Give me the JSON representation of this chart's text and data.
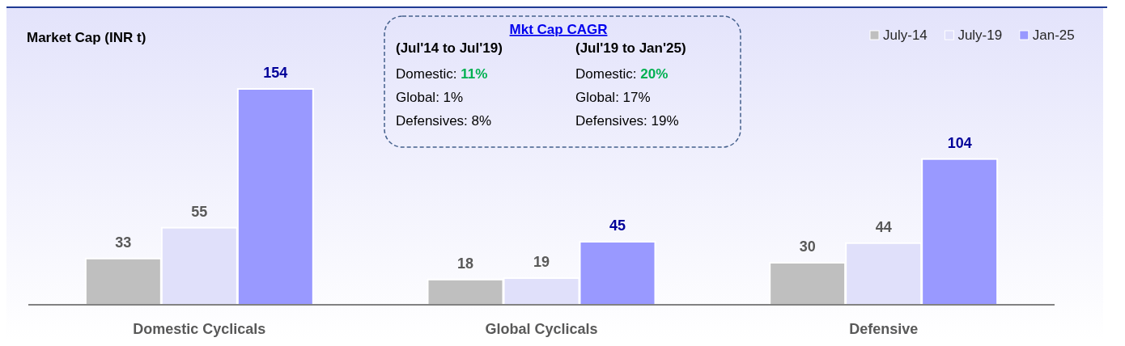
{
  "chart_data": {
    "type": "bar",
    "ylabel": "Market Cap (INR t)",
    "categories": [
      "Domestic Cyclicals",
      "Global Cyclicals",
      "Defensive"
    ],
    "series": [
      {
        "name": "July-14",
        "color": "#bfbfbf",
        "values": [
          33,
          18,
          30
        ]
      },
      {
        "name": "July-19",
        "color": "#e0e0fa",
        "values": [
          55,
          19,
          44
        ]
      },
      {
        "name": "Jan-25",
        "color": "#9999ff",
        "values": [
          154,
          45,
          104
        ]
      }
    ],
    "data_labels": true,
    "legend": "top right",
    "grid": false,
    "annotations": [
      "Mkt Cap CAGR",
      "(Jul'14 to Jul'19)",
      "(Jul'19 to Jan'25)",
      "Domestic: 11%",
      "Domestic: 20%",
      "Global: 1%",
      "Global: 17%",
      "Defensives: 8%",
      "Defensives: 19%"
    ]
  }
}
